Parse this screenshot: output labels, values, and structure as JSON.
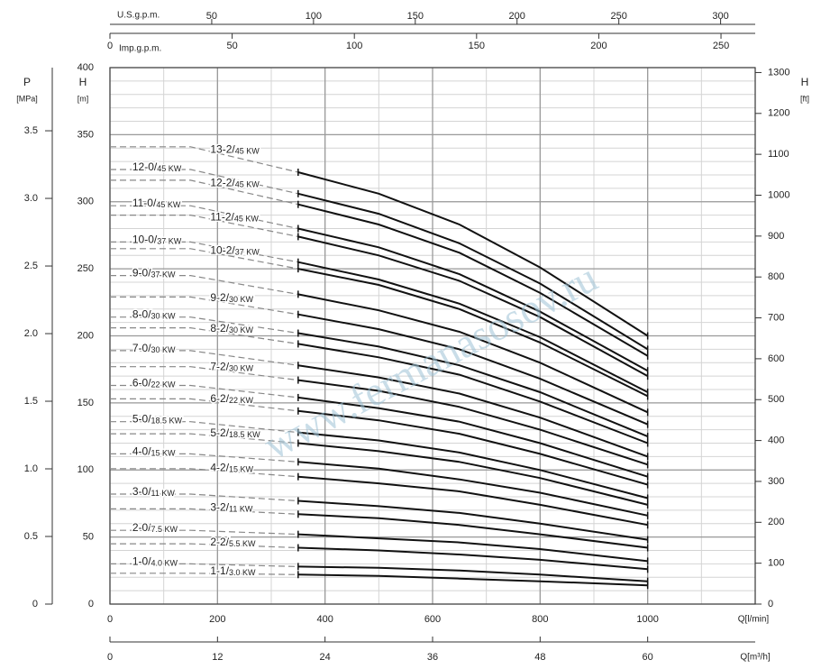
{
  "chart_data": {
    "type": "line",
    "xlabel": "Q[l/min]",
    "ylabel": "H",
    "yunit": "[m]",
    "xlim": [
      0,
      1200
    ],
    "xticks": [
      0,
      200,
      400,
      600,
      800,
      1000
    ],
    "ylim": [
      0,
      400
    ],
    "yticks": [
      0,
      50,
      100,
      150,
      200,
      250,
      300,
      350,
      400
    ],
    "grid": true,
    "minor_grid": {
      "x": 100,
      "y": 10
    },
    "dashed_below_x": 350,
    "x": [
      0,
      150,
      350,
      500,
      650,
      800,
      1000
    ],
    "series": [
      {
        "model": "13-2/",
        "power": "45 KW",
        "values": [
          341,
          341,
          322,
          306,
          283,
          251,
          200
        ]
      },
      {
        "model": "12-0/",
        "power": "45 KW",
        "values": [
          324,
          324,
          306,
          291,
          269,
          239,
          190
        ]
      },
      {
        "model": "12-2/",
        "power": "45 KW",
        "values": [
          316,
          316,
          298,
          283,
          262,
          232,
          185
        ]
      },
      {
        "model": "11-0/",
        "power": "45 KW",
        "values": [
          297,
          297,
          280,
          266,
          246,
          218,
          174
        ]
      },
      {
        "model": "11-2/",
        "power": "45 KW",
        "values": [
          290,
          290,
          274,
          260,
          241,
          214,
          170
        ]
      },
      {
        "model": "10-0/",
        "power": "37 KW",
        "values": [
          270,
          270,
          255,
          242,
          224,
          199,
          158
        ]
      },
      {
        "model": "10-2/",
        "power": "37 KW",
        "values": [
          265,
          265,
          250,
          238,
          220,
          195,
          155
        ]
      },
      {
        "model": "9-0/",
        "power": "37 KW",
        "values": [
          245,
          245,
          231,
          219,
          203,
          180,
          143
        ]
      },
      {
        "model": "9-2/",
        "power": "30 KW",
        "values": [
          229,
          229,
          216,
          205,
          190,
          168,
          134
        ]
      },
      {
        "model": "8-0/",
        "power": "30 KW",
        "values": [
          214,
          214,
          202,
          192,
          178,
          158,
          125
        ]
      },
      {
        "model": "8-2/",
        "power": "30 KW",
        "values": [
          206,
          206,
          194,
          184,
          171,
          151,
          120
        ]
      },
      {
        "model": "7-0/",
        "power": "30 KW",
        "values": [
          189,
          189,
          178,
          169,
          157,
          139,
          110
        ]
      },
      {
        "model": "7-2/",
        "power": "30 KW",
        "values": [
          177,
          177,
          167,
          159,
          147,
          130,
          104
        ]
      },
      {
        "model": "6-0/",
        "power": "22 KW",
        "values": [
          163,
          163,
          154,
          146,
          136,
          120,
          95
        ]
      },
      {
        "model": "6-2/",
        "power": "22 KW",
        "values": [
          153,
          153,
          144,
          137,
          127,
          112,
          89
        ]
      },
      {
        "model": "5-0/",
        "power": "18.5 KW",
        "values": [
          136,
          136,
          128,
          122,
          113,
          100,
          79
        ]
      },
      {
        "model": "5-2/",
        "power": "18.5 KW",
        "values": [
          127,
          127,
          120,
          114,
          106,
          94,
          74
        ]
      },
      {
        "model": "4-0/",
        "power": "15 KW",
        "values": [
          112,
          112,
          106,
          101,
          93,
          83,
          66
        ]
      },
      {
        "model": "4-2/",
        "power": "15 KW",
        "values": [
          101,
          101,
          95,
          90,
          84,
          74,
          59
        ]
      },
      {
        "model": "3-0/",
        "power": "11 KW",
        "values": [
          82,
          82,
          77,
          73,
          68,
          60,
          48
        ]
      },
      {
        "model": "3-2/",
        "power": "11 KW",
        "values": [
          71,
          71,
          67,
          64,
          59,
          52,
          42
        ]
      },
      {
        "model": "2-0/",
        "power": "7.5 KW",
        "values": [
          55,
          55,
          52,
          49,
          46,
          41,
          32
        ]
      },
      {
        "model": "2-2/",
        "power": "5.5 KW",
        "values": [
          45,
          45,
          42,
          40,
          37,
          33,
          26
        ]
      },
      {
        "model": "1-0/",
        "power": "4.0 KW",
        "values": [
          30,
          30,
          28,
          27,
          25,
          22,
          17
        ]
      },
      {
        "model": "1-1/",
        "power": "3.0 KW",
        "values": [
          23,
          23,
          22,
          21,
          19,
          17,
          14
        ]
      }
    ],
    "p_axis": {
      "label": "P",
      "unit": "[MPa]",
      "lim": [
        0,
        3.967
      ],
      "ticks": [
        0,
        0.5,
        {
          "value": 1,
          "label": "1.0"
        },
        1.5,
        {
          "value": 2,
          "label": "2.0"
        },
        2.5,
        {
          "value": 3,
          "label": "3.0"
        },
        3.5
      ]
    },
    "ft_axis": {
      "label": "H",
      "unit": "[ft]",
      "lim": [
        0,
        1312
      ],
      "ticks": [
        0,
        100,
        200,
        300,
        400,
        500,
        600,
        700,
        800,
        900,
        1000,
        1100,
        1200,
        1300
      ]
    },
    "us_gpm_axis": {
      "label": "U.S.g.p.m.",
      "lim": [
        0,
        317
      ],
      "ticks": [
        50,
        100,
        150,
        200,
        250,
        300
      ]
    },
    "imp_gpm_axis": {
      "label": "Imp.g.p.m.",
      "lim": [
        0,
        264
      ],
      "ticks": [
        0,
        50,
        100,
        150,
        200,
        250
      ]
    },
    "m3h_axis": {
      "label": "Q[m³/h]",
      "lim": [
        0,
        72
      ],
      "ticks": [
        0,
        12,
        24,
        36,
        48,
        60
      ]
    },
    "watermark": "www.fermanasosov.ru"
  }
}
